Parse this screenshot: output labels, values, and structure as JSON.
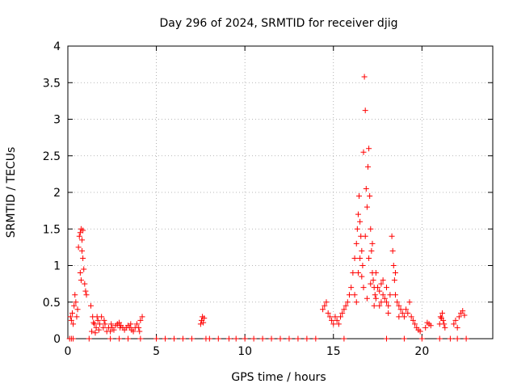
{
  "chart_data": {
    "type": "scatter",
    "title": "Day 296 of 2024, SRMTID for receiver djig",
    "xlabel": "GPS time / hours",
    "ylabel": "SRMTID / TECUs",
    "xlim": [
      0,
      24
    ],
    "ylim": [
      0,
      4
    ],
    "xticks": [
      0,
      5,
      10,
      15,
      20
    ],
    "yticks": [
      0,
      0.5,
      1,
      1.5,
      2,
      2.5,
      3,
      3.5,
      4
    ],
    "xtick_labels": [
      "0",
      "5",
      "10",
      "15",
      "20"
    ],
    "ytick_labels": [
      "0",
      "0.5",
      "1",
      "1.5",
      "2",
      "2.5",
      "3",
      "3.5",
      "4"
    ],
    "grid": true,
    "legend": "none",
    "marker": "+",
    "marker_color": "#ff0000",
    "series": [
      {
        "name": "SRMTID",
        "points": [
          [
            0.1,
            0.0
          ],
          [
            0.15,
            0.3
          ],
          [
            0.2,
            0.25
          ],
          [
            0.25,
            0.35
          ],
          [
            0.3,
            0.2
          ],
          [
            0.35,
            0.45
          ],
          [
            0.4,
            0.6
          ],
          [
            0.45,
            0.5
          ],
          [
            0.5,
            0.3
          ],
          [
            0.55,
            0.4
          ],
          [
            0.6,
            1.25
          ],
          [
            0.65,
            1.4
          ],
          [
            0.7,
            1.45
          ],
          [
            0.75,
            1.5
          ],
          [
            0.8,
            1.35
          ],
          [
            0.85,
            1.1
          ],
          [
            0.9,
            0.95
          ],
          [
            0.95,
            0.75
          ],
          [
            1.0,
            0.65
          ],
          [
            1.05,
            0.6
          ],
          [
            0.7,
            0.9
          ],
          [
            0.75,
            0.8
          ],
          [
            0.8,
            1.2
          ],
          [
            0.85,
            1.48
          ],
          [
            1.3,
            0.45
          ],
          [
            1.4,
            0.3
          ],
          [
            1.5,
            0.2
          ],
          [
            1.6,
            0.15
          ],
          [
            1.7,
            0.25
          ],
          [
            1.8,
            0.2
          ],
          [
            1.9,
            0.3
          ],
          [
            2.0,
            0.15
          ],
          [
            2.1,
            0.2
          ],
          [
            2.2,
            0.1
          ],
          [
            2.3,
            0.15
          ],
          [
            2.4,
            0.1
          ],
          [
            2.5,
            0.15
          ],
          [
            2.6,
            0.12
          ],
          [
            2.7,
            0.18
          ],
          [
            2.8,
            0.2
          ],
          [
            2.9,
            0.22
          ],
          [
            3.0,
            0.18
          ],
          [
            3.1,
            0.15
          ],
          [
            3.2,
            0.12
          ],
          [
            3.3,
            0.15
          ],
          [
            3.4,
            0.18
          ],
          [
            3.5,
            0.15
          ],
          [
            3.6,
            0.12
          ],
          [
            3.7,
            0.1
          ],
          [
            3.8,
            0.15
          ],
          [
            3.9,
            0.2
          ],
          [
            4.0,
            0.15
          ],
          [
            4.1,
            0.25
          ],
          [
            4.2,
            0.3
          ],
          [
            1.35,
            0.1
          ],
          [
            1.45,
            0.22
          ],
          [
            1.55,
            0.08
          ],
          [
            1.65,
            0.3
          ],
          [
            1.75,
            0.12
          ],
          [
            2.05,
            0.25
          ],
          [
            2.45,
            0.2
          ],
          [
            2.95,
            0.15
          ],
          [
            3.55,
            0.2
          ],
          [
            4.05,
            0.1
          ],
          [
            7.5,
            0.2
          ],
          [
            7.55,
            0.25
          ],
          [
            7.6,
            0.3
          ],
          [
            7.65,
            0.22
          ],
          [
            7.7,
            0.28
          ],
          [
            14.4,
            0.4
          ],
          [
            14.5,
            0.45
          ],
          [
            14.6,
            0.5
          ],
          [
            14.7,
            0.35
          ],
          [
            14.8,
            0.3
          ],
          [
            14.9,
            0.25
          ],
          [
            15.0,
            0.2
          ],
          [
            15.1,
            0.3
          ],
          [
            15.2,
            0.25
          ],
          [
            15.3,
            0.2
          ],
          [
            15.4,
            0.3
          ],
          [
            15.5,
            0.35
          ],
          [
            15.6,
            0.4
          ],
          [
            15.7,
            0.45
          ],
          [
            15.8,
            0.5
          ],
          [
            15.9,
            0.6
          ],
          [
            16.0,
            0.7
          ],
          [
            16.1,
            0.9
          ],
          [
            16.2,
            1.1
          ],
          [
            16.3,
            1.3
          ],
          [
            16.35,
            1.5
          ],
          [
            16.4,
            1.7
          ],
          [
            16.45,
            1.95
          ],
          [
            16.5,
            1.6
          ],
          [
            16.55,
            1.4
          ],
          [
            16.6,
            1.2
          ],
          [
            16.65,
            1.0
          ],
          [
            16.7,
            2.55
          ],
          [
            16.75,
            3.58
          ],
          [
            16.8,
            3.12
          ],
          [
            16.85,
            2.05
          ],
          [
            16.9,
            1.8
          ],
          [
            16.95,
            2.35
          ],
          [
            17.0,
            2.6
          ],
          [
            17.05,
            1.95
          ],
          [
            17.1,
            1.5
          ],
          [
            17.15,
            1.2
          ],
          [
            17.2,
            0.9
          ],
          [
            17.25,
            0.8
          ],
          [
            17.3,
            0.7
          ],
          [
            17.35,
            0.6
          ],
          [
            17.4,
            0.55
          ],
          [
            17.5,
            0.7
          ],
          [
            17.6,
            0.65
          ],
          [
            17.7,
            0.5
          ],
          [
            17.8,
            0.6
          ],
          [
            17.9,
            0.55
          ],
          [
            18.0,
            0.5
          ],
          [
            18.1,
            0.45
          ],
          [
            18.2,
            0.6
          ],
          [
            18.3,
            1.4
          ],
          [
            18.35,
            1.2
          ],
          [
            18.4,
            1.0
          ],
          [
            18.45,
            0.8
          ],
          [
            18.5,
            0.6
          ],
          [
            18.6,
            0.5
          ],
          [
            18.7,
            0.45
          ],
          [
            18.8,
            0.4
          ],
          [
            18.9,
            0.35
          ],
          [
            19.0,
            0.3
          ],
          [
            19.1,
            0.4
          ],
          [
            19.2,
            0.35
          ],
          [
            19.3,
            0.5
          ],
          [
            19.4,
            0.3
          ],
          [
            19.5,
            0.25
          ],
          [
            19.6,
            0.2
          ],
          [
            19.7,
            0.15
          ],
          [
            19.8,
            0.12
          ],
          [
            19.9,
            0.1
          ],
          [
            16.2,
            0.6
          ],
          [
            16.4,
            0.9
          ],
          [
            16.6,
            0.85
          ],
          [
            16.8,
            1.4
          ],
          [
            17.0,
            1.1
          ],
          [
            17.2,
            1.3
          ],
          [
            17.4,
            0.9
          ],
          [
            17.6,
            0.45
          ],
          [
            17.8,
            0.8
          ],
          [
            18.0,
            0.7
          ],
          [
            16.3,
            0.5
          ],
          [
            16.5,
            1.1
          ],
          [
            16.7,
            0.7
          ],
          [
            16.9,
            0.55
          ],
          [
            17.1,
            0.75
          ],
          [
            17.3,
            0.45
          ],
          [
            17.7,
            0.75
          ],
          [
            18.1,
            0.35
          ],
          [
            18.5,
            0.9
          ],
          [
            18.7,
            0.3
          ],
          [
            20.2,
            0.15
          ],
          [
            20.3,
            0.22
          ],
          [
            20.4,
            0.2
          ],
          [
            20.5,
            0.18
          ],
          [
            21.0,
            0.2
          ],
          [
            21.05,
            0.3
          ],
          [
            21.1,
            0.28
          ],
          [
            21.15,
            0.35
          ],
          [
            21.2,
            0.25
          ],
          [
            21.25,
            0.2
          ],
          [
            21.3,
            0.15
          ],
          [
            21.8,
            0.2
          ],
          [
            21.9,
            0.25
          ],
          [
            22.0,
            0.15
          ],
          [
            22.1,
            0.3
          ],
          [
            22.2,
            0.35
          ],
          [
            22.3,
            0.38
          ],
          [
            22.4,
            0.32
          ],
          [
            0.2,
            0.0
          ],
          [
            0.3,
            0.0
          ],
          [
            1.2,
            0.0
          ],
          [
            2.4,
            0.0
          ],
          [
            2.9,
            0.0
          ],
          [
            3.4,
            0.0
          ],
          [
            4.1,
            0.0
          ],
          [
            5.0,
            0.0
          ],
          [
            5.5,
            0.0
          ],
          [
            6.0,
            0.0
          ],
          [
            6.5,
            0.0
          ],
          [
            7.0,
            0.0
          ],
          [
            7.8,
            0.0
          ],
          [
            8.0,
            0.0
          ],
          [
            8.5,
            0.0
          ],
          [
            9.1,
            0.0
          ],
          [
            9.5,
            0.0
          ],
          [
            10.0,
            0.0
          ],
          [
            10.5,
            0.0
          ],
          [
            11.0,
            0.0
          ],
          [
            11.5,
            0.0
          ],
          [
            12.0,
            0.0
          ],
          [
            12.5,
            0.0
          ],
          [
            13.0,
            0.0
          ],
          [
            13.5,
            0.0
          ],
          [
            14.0,
            0.0
          ],
          [
            15.6,
            0.0
          ],
          [
            18.0,
            0.0
          ],
          [
            19.0,
            0.0
          ],
          [
            20.0,
            0.0
          ],
          [
            21.0,
            0.0
          ],
          [
            21.6,
            0.0
          ],
          [
            22.0,
            0.0
          ],
          [
            22.5,
            0.0
          ]
        ]
      }
    ]
  }
}
